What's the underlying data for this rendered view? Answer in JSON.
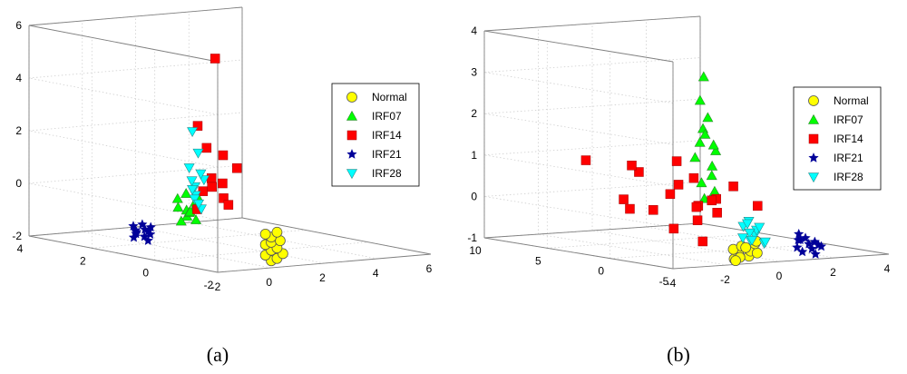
{
  "figure": {
    "panel_labels": [
      "(a)",
      "(b)"
    ]
  },
  "chart_data": [
    {
      "type": "scatter",
      "panel": "(a)",
      "dims": 3,
      "grid": true,
      "legend_position": "top-right",
      "xlim": [
        -2,
        6
      ],
      "ylim": [
        -2,
        4
      ],
      "zlim": [
        -2,
        6
      ],
      "x_ticks": [
        "-2",
        "0",
        "2",
        "4",
        "6"
      ],
      "y_ticks": [
        "-2",
        "0",
        "2",
        "4"
      ],
      "z_ticks": [
        "-2",
        "0",
        "2",
        "4",
        "6"
      ],
      "series": [
        {
          "name": "Normal",
          "marker": "circle",
          "color": "#ffff00",
          "points": [
            [
              0.6,
              -1.5,
              -1.9
            ],
            [
              0.7,
              -1.6,
              -1.8
            ],
            [
              0.5,
              -1.4,
              -1.7
            ],
            [
              0.8,
              -1.7,
              -1.6
            ],
            [
              0.6,
              -1.5,
              -1.5
            ],
            [
              0.7,
              -1.6,
              -1.4
            ],
            [
              0.5,
              -1.4,
              -1.3
            ],
            [
              0.6,
              -1.5,
              -1.2
            ],
            [
              0.7,
              -1.7,
              -1.1
            ],
            [
              0.6,
              -1.5,
              -1.0
            ],
            [
              0.5,
              -1.4,
              -0.9
            ],
            [
              0.7,
              -1.6,
              -0.8
            ]
          ]
        },
        {
          "name": "IRF07",
          "marker": "triangle-up",
          "color": "#00ff00",
          "points": [
            [
              -0.2,
              0.5,
              -0.6
            ],
            [
              -0.1,
              0.6,
              -0.4
            ],
            [
              0.0,
              0.4,
              -0.2
            ],
            [
              -0.3,
              0.7,
              -0.3
            ],
            [
              0.1,
              0.5,
              -0.1
            ],
            [
              -0.2,
              0.8,
              0.0
            ],
            [
              0.0,
              0.6,
              -0.5
            ],
            [
              -0.1,
              0.3,
              -0.7
            ],
            [
              0.2,
              0.5,
              0.1
            ],
            [
              -0.3,
              0.6,
              -0.8
            ],
            [
              0.0,
              0.7,
              0.2
            ],
            [
              -0.2,
              0.4,
              -0.4
            ]
          ]
        },
        {
          "name": "IRF14",
          "marker": "square",
          "color": "#ff0000",
          "points": [
            [
              0.5,
              0.2,
              5.4
            ],
            [
              0.2,
              0.5,
              2.8
            ],
            [
              0.3,
              0.3,
              2.0
            ],
            [
              0.8,
              0.2,
              1.7
            ],
            [
              1.2,
              0.1,
              1.2
            ],
            [
              0.6,
              0.4,
              0.8
            ],
            [
              0.9,
              0.3,
              0.6
            ],
            [
              0.4,
              0.5,
              0.3
            ],
            [
              0.7,
              0.1,
              0.1
            ],
            [
              1.0,
              0.2,
              -0.2
            ],
            [
              0.3,
              0.6,
              -0.4
            ],
            [
              0.5,
              0.3,
              0.5
            ]
          ]
        },
        {
          "name": "IRF21",
          "marker": "star",
          "color": "#000099",
          "points": [
            [
              -0.8,
              1.6,
              -1.4
            ],
            [
              -0.6,
              1.5,
              -1.3
            ],
            [
              -0.7,
              1.7,
              -1.5
            ],
            [
              -0.5,
              1.4,
              -1.2
            ],
            [
              -0.9,
              1.6,
              -1.6
            ],
            [
              -0.6,
              1.8,
              -1.4
            ],
            [
              -0.4,
              1.5,
              -1.5
            ],
            [
              -0.7,
              1.3,
              -1.3
            ],
            [
              -0.8,
              1.7,
              -1.2
            ],
            [
              -0.5,
              1.6,
              -1.6
            ],
            [
              -0.6,
              1.4,
              -1.7
            ],
            [
              -0.7,
              1.5,
              -1.1
            ]
          ]
        },
        {
          "name": "IRF28",
          "marker": "triangle-down",
          "color": "#00ffff",
          "points": [
            [
              0.0,
              0.5,
              2.6
            ],
            [
              0.1,
              0.4,
              1.8
            ],
            [
              0.0,
              0.6,
              1.2
            ],
            [
              0.2,
              0.3,
              0.8
            ],
            [
              0.1,
              0.5,
              0.5
            ],
            [
              0.0,
              0.4,
              0.2
            ],
            [
              0.2,
              0.6,
              0.0
            ],
            [
              0.1,
              0.3,
              -0.3
            ],
            [
              0.0,
              0.5,
              0.4
            ],
            [
              0.2,
              0.4,
              1.0
            ],
            [
              0.1,
              0.6,
              0.7
            ],
            [
              0.0,
              0.3,
              -0.1
            ]
          ]
        }
      ]
    },
    {
      "type": "scatter",
      "panel": "(b)",
      "dims": 3,
      "grid": true,
      "legend_position": "top-right",
      "xlim": [
        -4,
        4
      ],
      "ylim": [
        -5,
        10
      ],
      "zlim": [
        -1,
        4
      ],
      "x_ticks": [
        "-4",
        "-2",
        "0",
        "2",
        "4"
      ],
      "y_ticks": [
        "-5",
        "0",
        "5",
        "10"
      ],
      "z_ticks": [
        "-1",
        "0",
        "1",
        "2",
        "3",
        "4"
      ],
      "series": [
        {
          "name": "Normal",
          "marker": "circle",
          "color": "#ffff00",
          "points": [
            [
              -1.5,
              -4.5,
              -0.9
            ],
            [
              -1.2,
              -4.2,
              -0.8
            ],
            [
              -1.0,
              -4.6,
              -0.85
            ],
            [
              -0.8,
              -4.3,
              -0.75
            ],
            [
              -1.3,
              -4.0,
              -0.7
            ],
            [
              -0.6,
              -4.4,
              -0.8
            ],
            [
              -0.9,
              -3.8,
              -0.65
            ],
            [
              -1.1,
              -4.1,
              -0.9
            ],
            [
              -0.5,
              -4.0,
              -0.6
            ],
            [
              -0.7,
              -3.7,
              -0.7
            ],
            [
              -1.4,
              -4.4,
              -0.95
            ],
            [
              -0.4,
              -3.9,
              -0.55
            ]
          ]
        },
        {
          "name": "IRF07",
          "marker": "triangle-up",
          "color": "#00ff00",
          "points": [
            [
              -0.3,
              0.5,
              3.2
            ],
            [
              -0.2,
              1.0,
              2.6
            ],
            [
              -0.1,
              0.6,
              2.2
            ],
            [
              0.0,
              1.2,
              1.9
            ],
            [
              -0.3,
              0.8,
              1.6
            ],
            [
              0.1,
              0.4,
              1.4
            ],
            [
              -0.2,
              1.4,
              1.2
            ],
            [
              0.2,
              0.9,
              1.0
            ],
            [
              0.0,
              0.5,
              0.8
            ],
            [
              -0.1,
              1.1,
              0.6
            ],
            [
              0.2,
              0.7,
              0.4
            ],
            [
              0.1,
              1.3,
              0.2
            ],
            [
              -0.2,
              0.6,
              1.8
            ],
            [
              0.3,
              1.0,
              1.5
            ]
          ]
        },
        {
          "name": "IRF14",
          "marker": "square",
          "color": "#ff0000",
          "points": [
            [
              -3.5,
              3.0,
              1.2
            ],
            [
              -3.5,
              -0.5,
              0.2
            ],
            [
              -2.8,
              1.5,
              0.3
            ],
            [
              -2.4,
              0.0,
              0.1
            ],
            [
              -2.0,
              2.0,
              0.9
            ],
            [
              -1.8,
              3.0,
              1.0
            ],
            [
              -1.5,
              -2.0,
              -0.6
            ],
            [
              -1.2,
              -1.0,
              0.2
            ],
            [
              -1.0,
              1.0,
              0.6
            ],
            [
              -0.8,
              0.0,
              0.1
            ],
            [
              -0.6,
              2.0,
              1.1
            ],
            [
              -0.5,
              -1.0,
              0.0
            ],
            [
              -0.3,
              -0.5,
              0.3
            ],
            [
              -0.2,
              1.5,
              0.7
            ],
            [
              0.0,
              0.5,
              0.2
            ],
            [
              1.0,
              -1.0,
              0.1
            ],
            [
              1.5,
              2.0,
              0.4
            ],
            [
              -1.4,
              0.8,
              0.4
            ],
            [
              -0.9,
              -0.3,
              -0.2
            ],
            [
              -2.2,
              -1.2,
              -0.3
            ]
          ]
        },
        {
          "name": "IRF21",
          "marker": "star",
          "color": "#000099",
          "points": [
            [
              2.0,
              -2.0,
              -0.9
            ],
            [
              2.2,
              -2.5,
              -0.8
            ],
            [
              2.4,
              -1.8,
              -0.7
            ],
            [
              2.1,
              -2.2,
              -1.0
            ],
            [
              2.6,
              -2.4,
              -0.85
            ],
            [
              2.3,
              -1.6,
              -0.75
            ],
            [
              2.5,
              -2.1,
              -0.95
            ],
            [
              2.7,
              -1.9,
              -0.8
            ],
            [
              1.9,
              -2.3,
              -0.7
            ],
            [
              2.8,
              -2.2,
              -0.9
            ],
            [
              2.2,
              -1.7,
              -0.6
            ],
            [
              2.4,
              -2.6,
              -1.05
            ]
          ]
        },
        {
          "name": "IRF28",
          "marker": "triangle-down",
          "color": "#00ffff",
          "points": [
            [
              0.0,
              -2.0,
              -0.3
            ],
            [
              0.2,
              -2.5,
              -0.5
            ],
            [
              0.4,
              -2.2,
              -0.4
            ],
            [
              -0.1,
              -2.8,
              -0.6
            ],
            [
              0.3,
              -1.8,
              -0.2
            ],
            [
              0.5,
              -2.6,
              -0.7
            ],
            [
              0.1,
              -2.3,
              -0.45
            ],
            [
              0.6,
              -2.0,
              -0.35
            ],
            [
              -0.2,
              -2.4,
              -0.55
            ],
            [
              0.4,
              -2.9,
              -0.65
            ],
            [
              0.2,
              -1.9,
              -0.25
            ],
            [
              0.0,
              -2.7,
              -0.6
            ]
          ]
        }
      ]
    }
  ]
}
